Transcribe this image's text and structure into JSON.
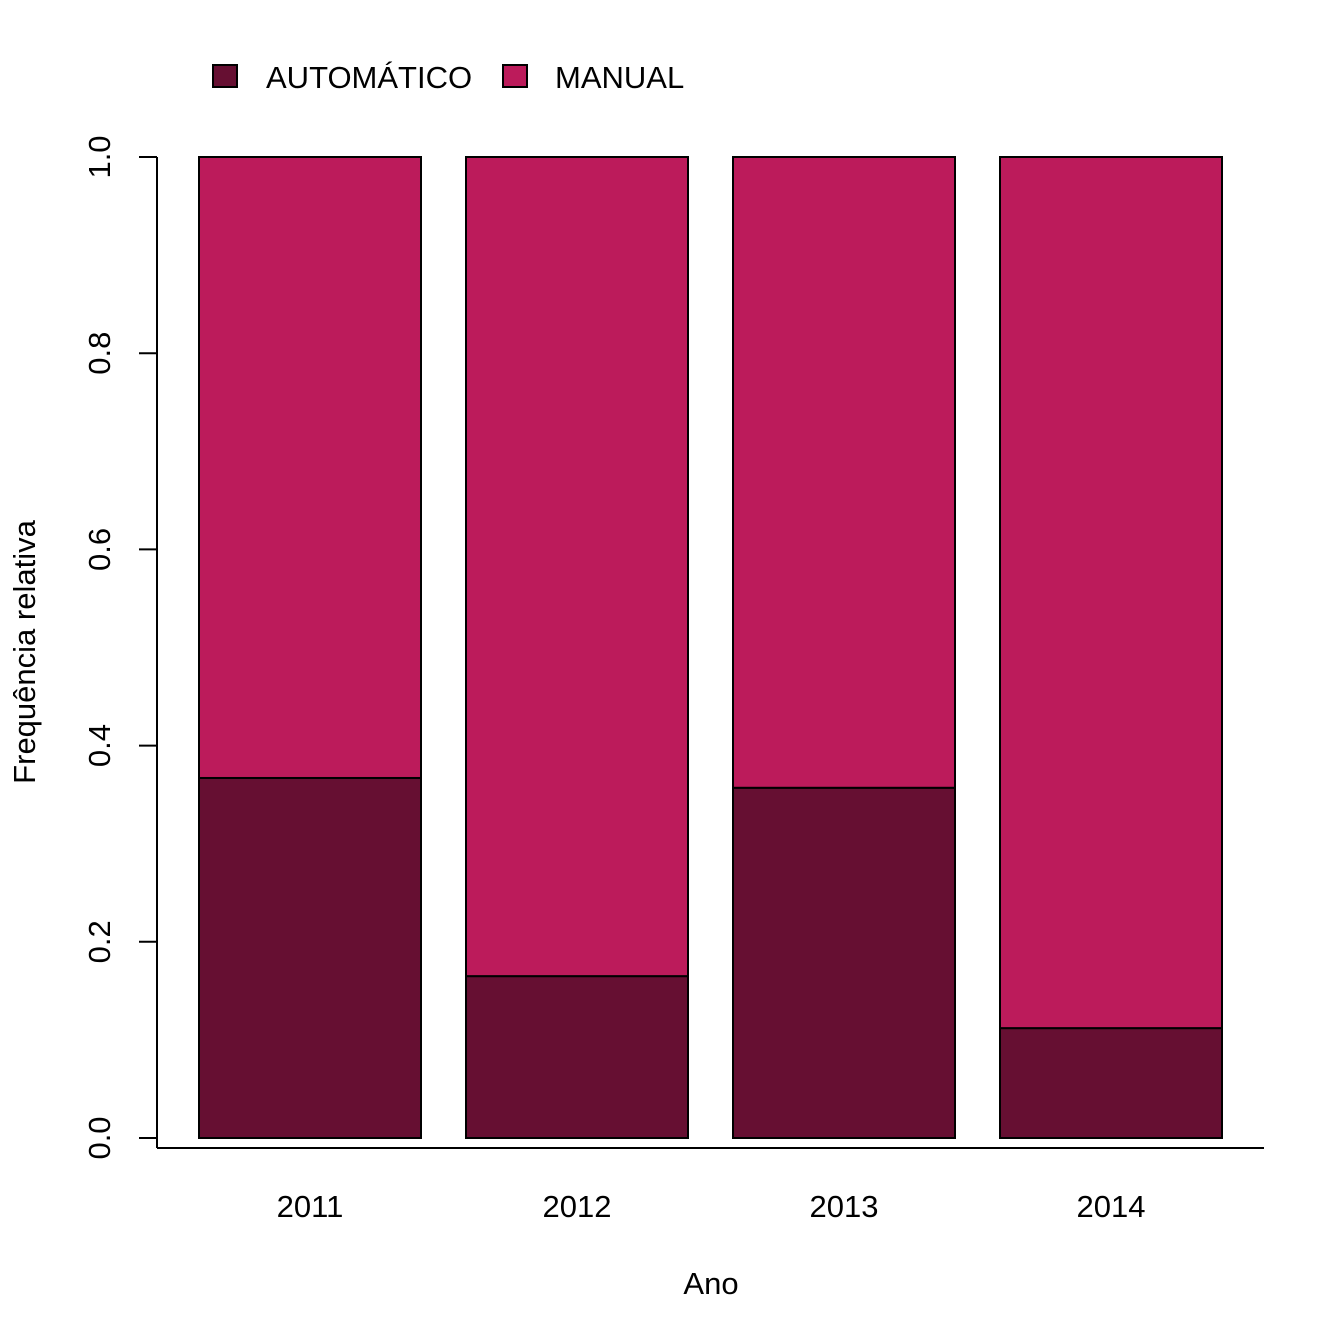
{
  "chart_data": {
    "type": "bar",
    "stacked": true,
    "categories": [
      "2011",
      "2012",
      "2013",
      "2014"
    ],
    "series": [
      {
        "name": "AUTOMÁTICO",
        "values": [
          0.367,
          0.165,
          0.357,
          0.112
        ],
        "color": "#660F32"
      },
      {
        "name": "MANUAL",
        "values": [
          0.633,
          0.835,
          0.643,
          0.888
        ],
        "color": "#BC1B5B"
      }
    ],
    "xlabel": "Ano",
    "ylabel": "Frequência relativa",
    "ylim": [
      0,
      1
    ],
    "yticks": [
      "0.0",
      "0.2",
      "0.4",
      "0.6",
      "0.8",
      "1.0"
    ],
    "grid": false,
    "legend_position": "top-left",
    "bar_outline_color": "#000000"
  }
}
